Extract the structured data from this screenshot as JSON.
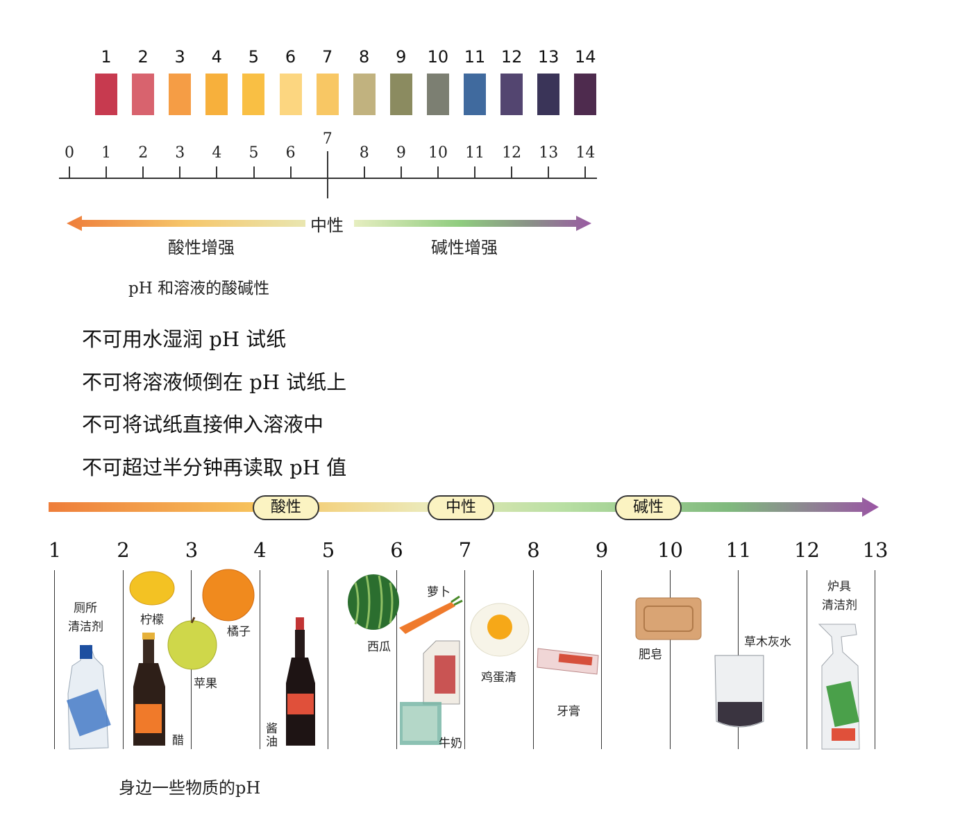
{
  "color_chart": {
    "numbers": [
      "1",
      "2",
      "3",
      "4",
      "5",
      "6",
      "7",
      "8",
      "9",
      "10",
      "11",
      "12",
      "13",
      "14"
    ],
    "colors": [
      "#c73a4f",
      "#d8636e",
      "#f59d45",
      "#f7b03c",
      "#f9bf44",
      "#fcd680",
      "#f8c764",
      "#c1b27f",
      "#8b8b60",
      "#7c7f72",
      "#406a9e",
      "#534570",
      "#3a3458",
      "#4e2b4e"
    ]
  },
  "scale": {
    "numbers": [
      "0",
      "1",
      "2",
      "3",
      "4",
      "5",
      "6",
      "7",
      "8",
      "9",
      "10",
      "11",
      "12",
      "13",
      "14"
    ],
    "neutral_label": "中性",
    "acid_label": "酸性增强",
    "base_label": "碱性增强",
    "caption": "pH 和溶液的酸碱性"
  },
  "rules": [
    "不可用水湿润 pH 试纸",
    "不可将溶液倾倒在 pH 试纸上",
    "不可将试纸直接伸入溶液中",
    "不可超过半分钟再读取 pH 值"
  ],
  "bottom": {
    "pills": {
      "acid": "酸性",
      "neutral": "中性",
      "base": "碱性"
    },
    "numbers": [
      "1",
      "2",
      "3",
      "4",
      "5",
      "6",
      "7",
      "8",
      "9",
      "10",
      "11",
      "12",
      "13"
    ],
    "items": {
      "toilet_cleaner_1": "厕所",
      "toilet_cleaner_2": "清洁剂",
      "lemon": "柠檬",
      "vinegar": "醋",
      "orange": "橘子",
      "apple": "苹果",
      "soy_1": "酱",
      "soy_2": "油",
      "watermelon": "西瓜",
      "carrot": "萝卜",
      "milk": "牛奶",
      "egg_white": "鸡蛋清",
      "toothpaste": "牙膏",
      "soap": "肥皂",
      "ash_water": "草木灰水",
      "oven_cleaner_1": "炉具",
      "oven_cleaner_2": "清洁剂"
    },
    "caption": "身边一些物质的pH"
  }
}
